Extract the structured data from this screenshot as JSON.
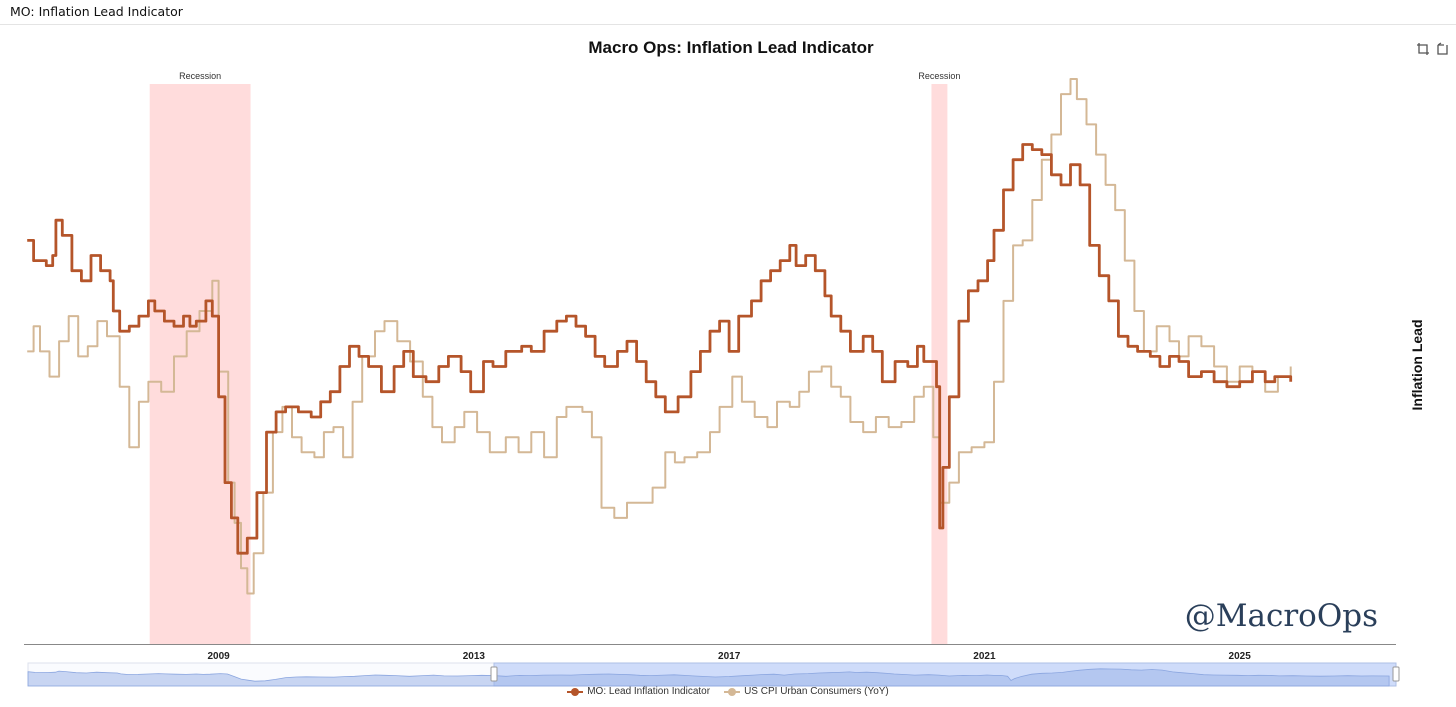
{
  "window": {
    "title": "MO: Inflation Lead Indicator"
  },
  "watermark": "@MacroOps",
  "toolbar": {
    "icons": [
      "crop-icon",
      "reset-zoom-icon"
    ]
  },
  "colors": {
    "lead": "#b5552a",
    "cpi": "#d4b896",
    "recession": "#ffdcdc",
    "navigator": "#cfdcfa"
  },
  "chart_data": {
    "type": "line",
    "title": "Macro Ops: Inflation Lead Indicator",
    "ylabel": "Inflation Lead",
    "xlabel": "",
    "xlim": [
      2005.95,
      2027.45
    ],
    "ylim": [
      -2.6,
      8.5
    ],
    "x_ticks": [
      "2009",
      "2013",
      "2017",
      "2021",
      "2025"
    ],
    "x_tick_values": [
      2009,
      2013,
      2017,
      2021,
      2025
    ],
    "recessions": [
      {
        "label": "Recession",
        "start": 2007.92,
        "end": 2009.5
      },
      {
        "label": "Recession",
        "start": 2020.17,
        "end": 2020.42
      }
    ],
    "legend": [
      "MO: Lead Inflation Indicator",
      "US CPI Urban Consumers (YoY)"
    ],
    "series": [
      {
        "name": "MO: Lead Inflation Indicator",
        "points": [
          [
            2006.0,
            5.4
          ],
          [
            2006.1,
            5.0
          ],
          [
            2006.3,
            4.9
          ],
          [
            2006.4,
            5.1
          ],
          [
            2006.45,
            5.8
          ],
          [
            2006.55,
            5.5
          ],
          [
            2006.7,
            4.8
          ],
          [
            2006.85,
            4.6
          ],
          [
            2007.0,
            5.1
          ],
          [
            2007.15,
            4.8
          ],
          [
            2007.3,
            4.6
          ],
          [
            2007.35,
            4.0
          ],
          [
            2007.45,
            3.6
          ],
          [
            2007.6,
            3.7
          ],
          [
            2007.75,
            3.9
          ],
          [
            2007.9,
            4.2
          ],
          [
            2008.0,
            4.0
          ],
          [
            2008.15,
            3.8
          ],
          [
            2008.3,
            3.7
          ],
          [
            2008.45,
            3.9
          ],
          [
            2008.55,
            3.7
          ],
          [
            2008.65,
            3.8
          ],
          [
            2008.8,
            4.2
          ],
          [
            2008.9,
            3.9
          ],
          [
            2009.0,
            2.3
          ],
          [
            2009.1,
            0.6
          ],
          [
            2009.2,
            -0.1
          ],
          [
            2009.3,
            -0.8
          ],
          [
            2009.45,
            -0.5
          ],
          [
            2009.6,
            0.4
          ],
          [
            2009.75,
            1.6
          ],
          [
            2009.9,
            2.0
          ],
          [
            2010.05,
            2.1
          ],
          [
            2010.25,
            2.0
          ],
          [
            2010.45,
            1.9
          ],
          [
            2010.6,
            2.2
          ],
          [
            2010.75,
            2.4
          ],
          [
            2010.9,
            2.9
          ],
          [
            2011.05,
            3.3
          ],
          [
            2011.2,
            3.1
          ],
          [
            2011.35,
            2.9
          ],
          [
            2011.55,
            2.4
          ],
          [
            2011.75,
            2.9
          ],
          [
            2011.9,
            3.2
          ],
          [
            2012.05,
            2.7
          ],
          [
            2012.25,
            2.6
          ],
          [
            2012.45,
            2.9
          ],
          [
            2012.6,
            3.1
          ],
          [
            2012.8,
            2.8
          ],
          [
            2012.95,
            2.4
          ],
          [
            2013.15,
            3.0
          ],
          [
            2013.3,
            2.9
          ],
          [
            2013.5,
            3.2
          ],
          [
            2013.75,
            3.3
          ],
          [
            2013.9,
            3.2
          ],
          [
            2014.1,
            3.6
          ],
          [
            2014.3,
            3.8
          ],
          [
            2014.45,
            3.9
          ],
          [
            2014.6,
            3.7
          ],
          [
            2014.75,
            3.5
          ],
          [
            2014.9,
            3.1
          ],
          [
            2015.05,
            2.9
          ],
          [
            2015.25,
            3.2
          ],
          [
            2015.4,
            3.4
          ],
          [
            2015.55,
            3.0
          ],
          [
            2015.7,
            2.6
          ],
          [
            2015.85,
            2.3
          ],
          [
            2016.0,
            2.0
          ],
          [
            2016.2,
            2.3
          ],
          [
            2016.4,
            2.8
          ],
          [
            2016.55,
            3.2
          ],
          [
            2016.7,
            3.6
          ],
          [
            2016.85,
            3.8
          ],
          [
            2017.0,
            3.2
          ],
          [
            2017.15,
            3.9
          ],
          [
            2017.35,
            4.2
          ],
          [
            2017.5,
            4.6
          ],
          [
            2017.65,
            4.8
          ],
          [
            2017.8,
            5.0
          ],
          [
            2017.95,
            5.3
          ],
          [
            2018.05,
            4.9
          ],
          [
            2018.2,
            5.1
          ],
          [
            2018.35,
            4.8
          ],
          [
            2018.5,
            4.3
          ],
          [
            2018.6,
            3.9
          ],
          [
            2018.75,
            3.6
          ],
          [
            2018.9,
            3.2
          ],
          [
            2019.1,
            3.5
          ],
          [
            2019.25,
            3.2
          ],
          [
            2019.4,
            2.6
          ],
          [
            2019.6,
            3.0
          ],
          [
            2019.8,
            2.9
          ],
          [
            2019.95,
            3.3
          ],
          [
            2020.05,
            3.0
          ],
          [
            2020.15,
            3.0
          ],
          [
            2020.25,
            2.5
          ],
          [
            2020.3,
            -0.3
          ],
          [
            2020.35,
            0.9
          ],
          [
            2020.45,
            2.3
          ],
          [
            2020.6,
            3.8
          ],
          [
            2020.75,
            4.4
          ],
          [
            2020.9,
            4.6
          ],
          [
            2021.05,
            5.0
          ],
          [
            2021.15,
            5.6
          ],
          [
            2021.3,
            6.4
          ],
          [
            2021.45,
            7.0
          ],
          [
            2021.6,
            7.3
          ],
          [
            2021.75,
            7.2
          ],
          [
            2021.9,
            7.1
          ],
          [
            2022.05,
            6.7
          ],
          [
            2022.2,
            6.5
          ],
          [
            2022.35,
            6.9
          ],
          [
            2022.5,
            6.5
          ],
          [
            2022.65,
            5.3
          ],
          [
            2022.8,
            4.7
          ],
          [
            2022.95,
            4.2
          ],
          [
            2023.1,
            3.5
          ],
          [
            2023.25,
            3.3
          ],
          [
            2023.4,
            3.2
          ],
          [
            2023.6,
            3.1
          ],
          [
            2023.75,
            2.9
          ],
          [
            2023.9,
            3.1
          ],
          [
            2024.05,
            3.0
          ],
          [
            2024.2,
            2.7
          ],
          [
            2024.4,
            2.8
          ],
          [
            2024.6,
            2.6
          ],
          [
            2024.8,
            2.5
          ],
          [
            2025.0,
            2.6
          ],
          [
            2025.2,
            2.8
          ],
          [
            2025.4,
            2.6
          ],
          [
            2025.55,
            2.7
          ],
          [
            2025.8,
            2.6
          ]
        ]
      },
      {
        "name": "US CPI Urban Consumers (YoY)",
        "points": [
          [
            2006.0,
            3.2
          ],
          [
            2006.1,
            3.7
          ],
          [
            2006.2,
            3.2
          ],
          [
            2006.35,
            2.7
          ],
          [
            2006.5,
            3.4
          ],
          [
            2006.65,
            3.9
          ],
          [
            2006.8,
            3.1
          ],
          [
            2006.95,
            3.3
          ],
          [
            2007.1,
            3.8
          ],
          [
            2007.25,
            3.5
          ],
          [
            2007.45,
            2.5
          ],
          [
            2007.6,
            1.3
          ],
          [
            2007.75,
            2.2
          ],
          [
            2007.9,
            2.6
          ],
          [
            2008.1,
            2.4
          ],
          [
            2008.3,
            3.1
          ],
          [
            2008.5,
            3.6
          ],
          [
            2008.7,
            4.0
          ],
          [
            2008.9,
            4.6
          ],
          [
            2009.0,
            2.8
          ],
          [
            2009.15,
            0.6
          ],
          [
            2009.25,
            -0.2
          ],
          [
            2009.35,
            -1.1
          ],
          [
            2009.45,
            -1.6
          ],
          [
            2009.55,
            -0.8
          ],
          [
            2009.7,
            0.4
          ],
          [
            2009.85,
            1.6
          ],
          [
            2010.0,
            2.1
          ],
          [
            2010.15,
            1.5
          ],
          [
            2010.3,
            1.2
          ],
          [
            2010.5,
            1.1
          ],
          [
            2010.65,
            1.6
          ],
          [
            2010.8,
            1.7
          ],
          [
            2010.95,
            1.1
          ],
          [
            2011.1,
            2.2
          ],
          [
            2011.25,
            3.1
          ],
          [
            2011.45,
            3.6
          ],
          [
            2011.6,
            3.8
          ],
          [
            2011.8,
            3.4
          ],
          [
            2012.0,
            3.0
          ],
          [
            2012.2,
            2.3
          ],
          [
            2012.35,
            1.7
          ],
          [
            2012.5,
            1.4
          ],
          [
            2012.7,
            1.7
          ],
          [
            2012.85,
            2.0
          ],
          [
            2013.05,
            1.6
          ],
          [
            2013.25,
            1.2
          ],
          [
            2013.5,
            1.5
          ],
          [
            2013.7,
            1.2
          ],
          [
            2013.9,
            1.6
          ],
          [
            2014.1,
            1.1
          ],
          [
            2014.3,
            1.9
          ],
          [
            2014.45,
            2.1
          ],
          [
            2014.7,
            2.0
          ],
          [
            2014.85,
            1.5
          ],
          [
            2015.0,
            0.1
          ],
          [
            2015.2,
            -0.1
          ],
          [
            2015.4,
            0.2
          ],
          [
            2015.6,
            0.2
          ],
          [
            2015.8,
            0.5
          ],
          [
            2016.0,
            1.2
          ],
          [
            2016.15,
            1.0
          ],
          [
            2016.3,
            1.1
          ],
          [
            2016.5,
            1.2
          ],
          [
            2016.7,
            1.6
          ],
          [
            2016.85,
            2.1
          ],
          [
            2017.05,
            2.7
          ],
          [
            2017.2,
            2.2
          ],
          [
            2017.4,
            1.9
          ],
          [
            2017.6,
            1.7
          ],
          [
            2017.75,
            2.2
          ],
          [
            2017.95,
            2.1
          ],
          [
            2018.1,
            2.4
          ],
          [
            2018.25,
            2.8
          ],
          [
            2018.45,
            2.9
          ],
          [
            2018.6,
            2.5
          ],
          [
            2018.75,
            2.3
          ],
          [
            2018.9,
            1.8
          ],
          [
            2019.1,
            1.6
          ],
          [
            2019.3,
            1.9
          ],
          [
            2019.5,
            1.7
          ],
          [
            2019.7,
            1.8
          ],
          [
            2019.9,
            2.3
          ],
          [
            2020.05,
            2.5
          ],
          [
            2020.2,
            1.5
          ],
          [
            2020.3,
            0.2
          ],
          [
            2020.45,
            0.6
          ],
          [
            2020.6,
            1.2
          ],
          [
            2020.8,
            1.3
          ],
          [
            2021.0,
            1.4
          ],
          [
            2021.15,
            2.6
          ],
          [
            2021.3,
            4.2
          ],
          [
            2021.45,
            5.3
          ],
          [
            2021.6,
            5.4
          ],
          [
            2021.75,
            6.2
          ],
          [
            2021.9,
            7.0
          ],
          [
            2022.05,
            7.5
          ],
          [
            2022.2,
            8.3
          ],
          [
            2022.35,
            8.6
          ],
          [
            2022.45,
            8.2
          ],
          [
            2022.6,
            7.7
          ],
          [
            2022.75,
            7.1
          ],
          [
            2022.9,
            6.5
          ],
          [
            2023.05,
            6.0
          ],
          [
            2023.2,
            5.0
          ],
          [
            2023.35,
            4.0
          ],
          [
            2023.5,
            3.2
          ],
          [
            2023.7,
            3.7
          ],
          [
            2023.9,
            3.4
          ],
          [
            2024.05,
            3.1
          ],
          [
            2024.2,
            3.5
          ],
          [
            2024.4,
            3.3
          ],
          [
            2024.6,
            2.9
          ],
          [
            2024.8,
            2.6
          ],
          [
            2025.0,
            2.9
          ],
          [
            2025.2,
            2.8
          ],
          [
            2025.4,
            2.4
          ],
          [
            2025.6,
            2.7
          ],
          [
            2025.8,
            2.9
          ]
        ]
      }
    ]
  }
}
